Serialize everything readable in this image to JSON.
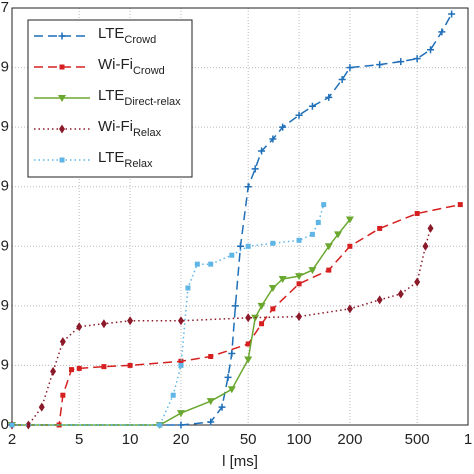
{
  "chart_data": {
    "type": "line",
    "x_label": "l [ms]",
    "xscale": "log",
    "xlim": [
      2,
      1000
    ],
    "xticks": [
      2,
      5,
      10,
      20,
      50,
      100,
      200,
      500,
      {
        "value": 1000,
        "label": "1"
      }
    ],
    "ylim": [
      0,
      7
    ],
    "yticks": [
      0,
      {
        "value": 1,
        "label": "9"
      },
      {
        "value": 2,
        "label": "9"
      },
      {
        "value": 3,
        "label": "9"
      },
      {
        "value": 4,
        "label": "9"
      },
      {
        "value": 5,
        "label": "9"
      },
      {
        "value": 6,
        "label": "9"
      },
      7
    ],
    "grid": true,
    "legend": "upper left",
    "series": [
      {
        "name": "LTE",
        "name_sub": "Crowd",
        "color": "#1f6fb8",
        "linestyle": "dashed",
        "marker": "plus",
        "x": [
          2,
          20,
          30,
          35,
          38,
          40,
          42,
          45,
          50,
          55,
          60,
          70,
          80,
          100,
          120,
          150,
          180,
          200,
          300,
          400,
          500,
          600,
          700,
          800
        ],
        "values": [
          0,
          0,
          0.05,
          0.3,
          0.8,
          1.2,
          2,
          3,
          4,
          4.3,
          4.6,
          4.8,
          5,
          5.2,
          5.35,
          5.5,
          5.8,
          6,
          6.05,
          6.1,
          6.15,
          6.3,
          6.6,
          6.9
        ]
      },
      {
        "name": "Wi-Fi",
        "name_sub": "Crowd",
        "color": "#d62020",
        "linestyle": "dashed",
        "marker": "square",
        "x": [
          2,
          3.8,
          4,
          4.5,
          5,
          7,
          10,
          20,
          30,
          50,
          60,
          70,
          100,
          150,
          200,
          300,
          500,
          900
        ],
        "values": [
          0,
          0,
          0.5,
          0.93,
          0.95,
          0.98,
          1,
          1.07,
          1.15,
          1.36,
          1.7,
          1.95,
          2.37,
          2.6,
          3,
          3.3,
          3.55,
          3.7
        ]
      },
      {
        "name": "LTE",
        "name_sub": "Direct-relax",
        "color": "#6aa830",
        "linestyle": "solid",
        "marker": "triangle",
        "x": [
          2,
          15,
          20,
          30,
          40,
          50,
          55,
          60,
          70,
          80,
          100,
          120,
          150,
          170,
          200
        ],
        "values": [
          0,
          0,
          0.2,
          0.4,
          0.6,
          1.1,
          1.8,
          2,
          2.3,
          2.45,
          2.5,
          2.6,
          3,
          3.2,
          3.45
        ]
      },
      {
        "name": "Wi-Fi",
        "name_sub": "Relax",
        "color": "#8b1a2a",
        "linestyle": "dotted",
        "marker": "diamond",
        "x": [
          2,
          2.5,
          3,
          3.5,
          4,
          5,
          7,
          10,
          20,
          50,
          100,
          200,
          300,
          400,
          500,
          560,
          600
        ],
        "values": [
          0,
          0,
          0.3,
          0.9,
          1.4,
          1.65,
          1.7,
          1.75,
          1.75,
          1.8,
          1.82,
          1.95,
          2.1,
          2.2,
          2.4,
          3,
          3.3
        ]
      },
      {
        "name": "LTE",
        "name_sub": "Relax",
        "color": "#5fb6e6",
        "linestyle": "dotted",
        "marker": "square",
        "x": [
          2,
          15,
          18,
          20,
          22,
          25,
          30,
          40,
          50,
          70,
          100,
          120,
          130,
          140
        ],
        "values": [
          0,
          0,
          0.5,
          1,
          2.3,
          2.7,
          2.7,
          2.85,
          3,
          3.05,
          3.1,
          3.2,
          3.4,
          3.7
        ]
      }
    ]
  }
}
